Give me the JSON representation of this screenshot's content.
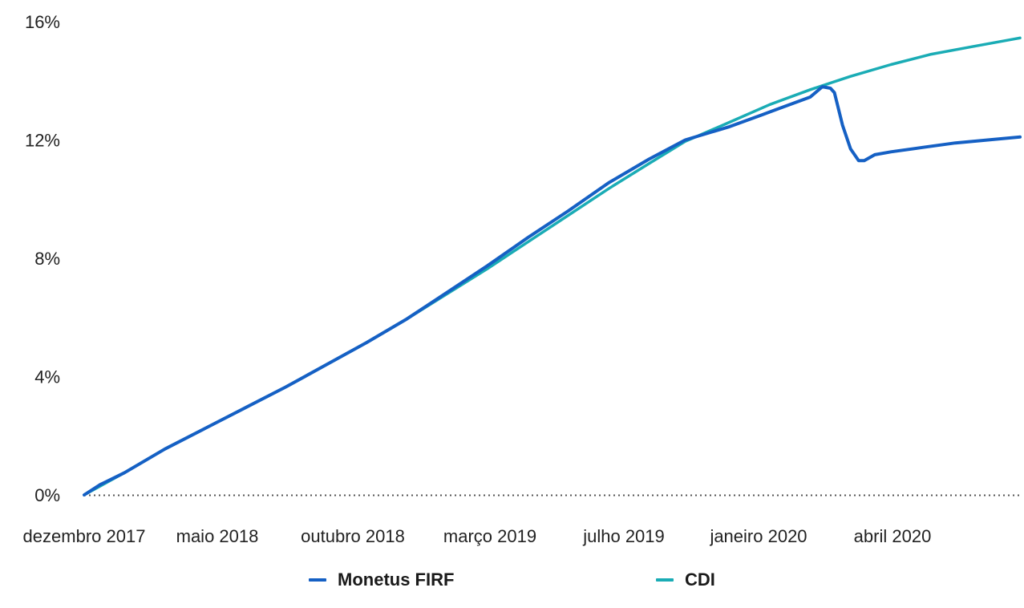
{
  "chart_data": {
    "type": "line",
    "title": "",
    "xlabel": "",
    "ylabel": "",
    "ylim": [
      0,
      16
    ],
    "y_ticks": [
      "0%",
      "4%",
      "8%",
      "12%",
      "16%"
    ],
    "x_tick_labels": [
      "dezembro 2017",
      "maio 2018",
      "outubro 2018",
      "março 2019",
      "julho 2019",
      "janeiro 2020",
      "abril 2020"
    ],
    "grid": false,
    "zero_line": "dotted",
    "legend_position": "bottom",
    "series": [
      {
        "name": "Monetus FIRF",
        "color": "#1560C4",
        "points": [
          [
            0,
            0
          ],
          [
            0.02,
            0.35
          ],
          [
            0.05,
            0.75
          ],
          [
            0.1,
            1.55
          ],
          [
            0.15,
            2.25
          ],
          [
            0.2,
            2.95
          ],
          [
            0.25,
            3.65
          ],
          [
            0.3,
            4.4
          ],
          [
            0.35,
            5.15
          ],
          [
            0.4,
            5.95
          ],
          [
            0.45,
            6.85
          ],
          [
            0.5,
            7.75
          ],
          [
            0.55,
            8.7
          ],
          [
            0.6,
            9.6
          ],
          [
            0.65,
            10.55
          ],
          [
            0.7,
            11.35
          ],
          [
            0.745,
            12.0
          ],
          [
            0.8,
            12.45
          ],
          [
            0.85,
            12.95
          ],
          [
            0.9,
            13.45
          ],
          [
            0.84,
            12.85
          ],
          [
            0.86,
            13.05
          ],
          [
            0.88,
            13.25
          ],
          [
            0.9,
            13.45
          ],
          [
            0.915,
            13.8
          ],
          [
            0.925,
            13.75
          ],
          [
            0.93,
            13.6
          ],
          [
            0.94,
            12.5
          ],
          [
            0.95,
            11.7
          ],
          [
            0.96,
            11.3
          ],
          [
            0.967,
            11.3
          ],
          [
            0.98,
            11.5
          ],
          [
            1.0,
            11.6
          ],
          [
            1.04,
            11.75
          ],
          [
            1.08,
            11.9
          ],
          [
            1.12,
            12.0
          ],
          [
            1.16,
            12.1
          ]
        ]
      },
      {
        "name": "CDI",
        "color": "#1AACB5",
        "points": [
          [
            0,
            0
          ],
          [
            0.05,
            0.75
          ],
          [
            0.1,
            1.55
          ],
          [
            0.15,
            2.25
          ],
          [
            0.2,
            2.95
          ],
          [
            0.25,
            3.65
          ],
          [
            0.3,
            4.4
          ],
          [
            0.35,
            5.15
          ],
          [
            0.4,
            5.95
          ],
          [
            0.45,
            6.8
          ],
          [
            0.5,
            7.65
          ],
          [
            0.55,
            8.55
          ],
          [
            0.6,
            9.45
          ],
          [
            0.65,
            10.35
          ],
          [
            0.7,
            11.2
          ],
          [
            0.745,
            11.95
          ],
          [
            0.8,
            12.6
          ],
          [
            0.85,
            13.2
          ],
          [
            0.9,
            13.7
          ],
          [
            0.95,
            14.15
          ],
          [
            1.0,
            14.55
          ],
          [
            1.05,
            14.9
          ],
          [
            1.1,
            15.15
          ],
          [
            1.16,
            15.45
          ]
        ]
      }
    ]
  }
}
